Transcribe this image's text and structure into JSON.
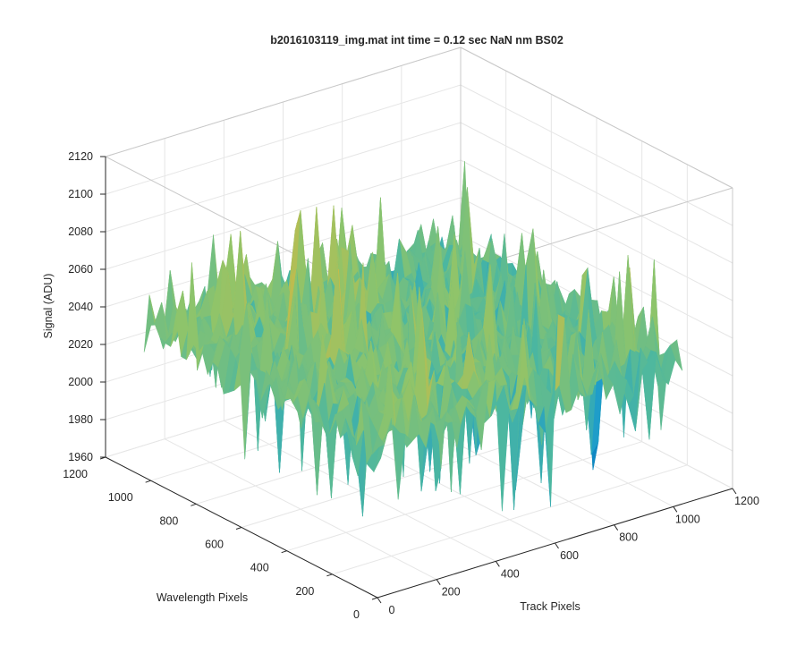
{
  "chart_data": {
    "type": "surface",
    "title": "b2016103119_img.mat int time = 0.12 sec  NaN nm BS02",
    "xlabel": "Track Pixels",
    "ylabel": "Wavelength Pixels",
    "zlabel": "Signal (ADU)",
    "xlim": [
      0,
      1200
    ],
    "ylim": [
      0,
      1200
    ],
    "zlim": [
      1960,
      2120
    ],
    "xticks": [
      "0",
      "200",
      "400",
      "600",
      "800",
      "1000",
      "1200"
    ],
    "yticks": [
      "0",
      "200",
      "400",
      "600",
      "800",
      "1000",
      "1200"
    ],
    "zticks": [
      "1960",
      "1980",
      "2000",
      "2020",
      "2040",
      "2060",
      "2080",
      "2100",
      "2120"
    ],
    "grid": true,
    "colormap": [
      "#0072bd",
      "#1f9ec9",
      "#4cb7a0",
      "#8fc46a",
      "#d8b83f",
      "#f2c12e"
    ],
    "data_summary": {
      "x_range": [
        0,
        1030
      ],
      "y_range": [
        0,
        1030
      ],
      "mean_signal": 2040,
      "signal_min": 1965,
      "signal_max": 2110
    }
  }
}
